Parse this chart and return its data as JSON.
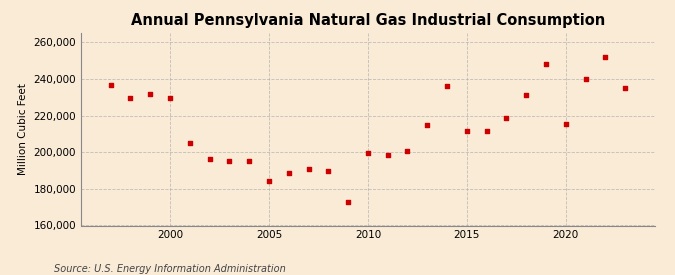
{
  "title": "Annual Pennsylvania Natural Gas Industrial Consumption",
  "ylabel": "Million Cubic Feet",
  "source": "Source: U.S. Energy Information Administration",
  "background_color": "#faebd7",
  "plot_background_color": "#faebd7",
  "dot_color": "#cc0000",
  "years": [
    1997,
    1998,
    1999,
    2000,
    2001,
    2002,
    2003,
    2004,
    2005,
    2006,
    2007,
    2008,
    2009,
    2010,
    2011,
    2012,
    2013,
    2014,
    2015,
    2016,
    2017,
    2018,
    2019,
    2020,
    2021,
    2022,
    2023
  ],
  "values": [
    236500,
    229500,
    231500,
    229500,
    205000,
    196500,
    195000,
    195000,
    184000,
    188500,
    191000,
    190000,
    173000,
    199500,
    198500,
    200500,
    215000,
    236000,
    211500,
    211500,
    218500,
    231000,
    248000,
    215500,
    240000,
    252000,
    235000
  ],
  "ylim": [
    160000,
    265000
  ],
  "yticks": [
    160000,
    180000,
    200000,
    220000,
    240000,
    260000
  ],
  "xlim": [
    1995.5,
    2024.5
  ],
  "xticks": [
    2000,
    2005,
    2010,
    2015,
    2020
  ],
  "grid_color": "#aaaaaa",
  "title_fontsize": 10.5,
  "label_fontsize": 7.5,
  "tick_fontsize": 7.5,
  "source_fontsize": 7
}
